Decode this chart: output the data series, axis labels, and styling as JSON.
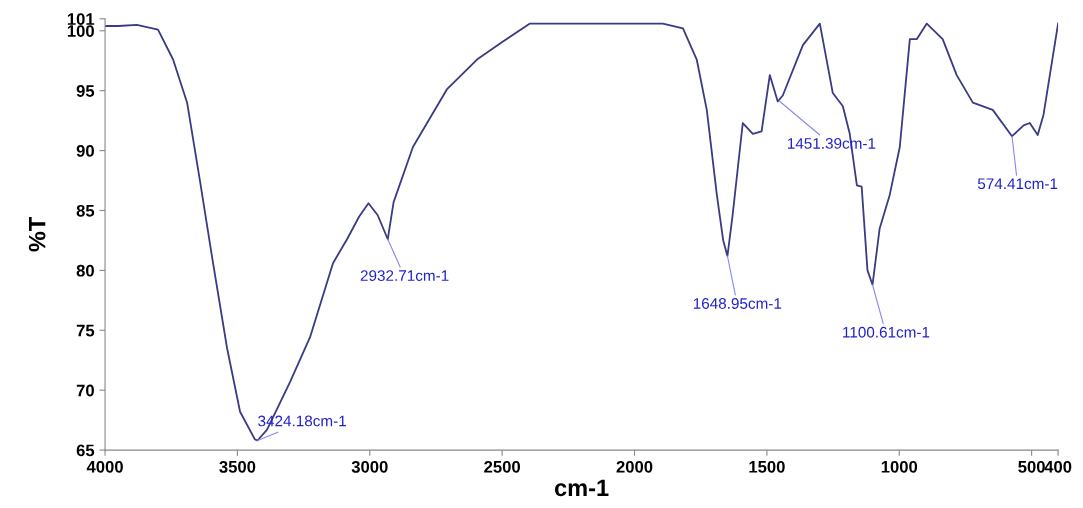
{
  "chart_data": {
    "type": "line",
    "xlabel": "cm-1",
    "ylabel": "%T",
    "xlim": [
      4000,
      400
    ],
    "xticks": [
      4000,
      3500,
      3000,
      2500,
      2000,
      1500,
      1000,
      500,
      400
    ],
    "ylim": [
      65,
      101
    ],
    "yticks": [
      65,
      70,
      75,
      80,
      85,
      90,
      95,
      100,
      101
    ],
    "grid": false,
    "legend": false,
    "marker": "none",
    "line_style": "solid",
    "series": [
      {
        "color": "#3a3a85",
        "x": [
          4000,
          3950,
          3880,
          3800,
          3743,
          3690,
          3641,
          3592,
          3539,
          3490,
          3434,
          3424,
          3388,
          3301,
          3226,
          3139,
          3086,
          3040,
          3005,
          2970,
          2932,
          2910,
          2837,
          2709,
          2595,
          2497,
          2395,
          2200,
          2000,
          1893,
          1817,
          1765,
          1727,
          1689,
          1665,
          1649,
          1630,
          1591,
          1553,
          1520,
          1489,
          1459,
          1440,
          1364,
          1300,
          1251,
          1213,
          1187,
          1160,
          1142,
          1120,
          1101,
          1074,
          1036,
          998,
          960,
          934,
          896,
          836,
          783,
          722,
          647,
          574,
          530,
          507,
          477,
          455,
          400
        ],
        "values": [
          100.4,
          100.4,
          100.5,
          100.1,
          97.6,
          94.0,
          87.4,
          80.6,
          73.5,
          68.2,
          65.9,
          65.8,
          66.7,
          70.7,
          74.4,
          80.6,
          82.6,
          84.5,
          85.6,
          84.6,
          82.6,
          85.7,
          90.3,
          95.1,
          97.6,
          99.1,
          100.6,
          100.6,
          100.6,
          100.6,
          100.2,
          97.6,
          93.4,
          86.3,
          82.5,
          81.2,
          84.5,
          92.3,
          91.4,
          91.6,
          96.3,
          94.1,
          94.6,
          98.8,
          100.6,
          94.8,
          93.7,
          91.4,
          87.1,
          87.0,
          80.0,
          78.8,
          83.5,
          86.3,
          90.3,
          99.3,
          99.3,
          100.6,
          99.3,
          96.3,
          94.0,
          93.4,
          91.2,
          92.1,
          92.3,
          91.3,
          93.0,
          100.6
        ]
      }
    ],
    "annotations": [
      {
        "text": "3424.18cm-1",
        "x": 3424,
        "y": 65.8
      },
      {
        "text": "2932.71cm-1",
        "x": 2932,
        "y": 82.6
      },
      {
        "text": "1648.95cm-1",
        "x": 1649,
        "y": 81.2
      },
      {
        "text": "1451.39cm-1",
        "x": 1451,
        "y": 94.1
      },
      {
        "text": "1100.61cm-1",
        "x": 1101,
        "y": 78.8
      },
      {
        "text": "574.41cm-1",
        "x": 574,
        "y": 91.2
      }
    ]
  }
}
